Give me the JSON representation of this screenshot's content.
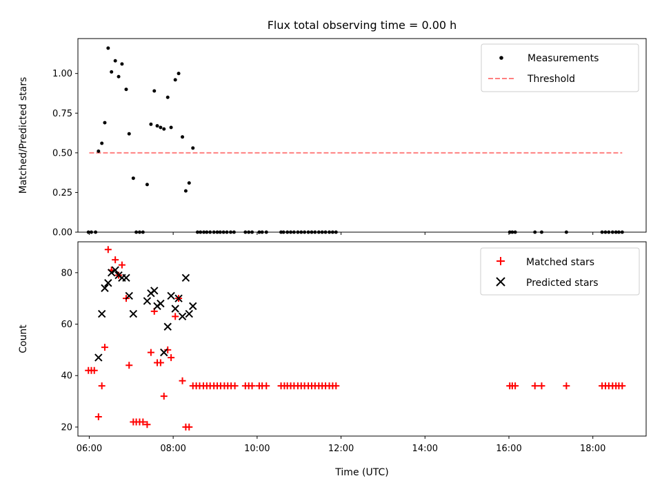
{
  "title": "Flux total observing time = 0.00 h",
  "colors": {
    "measurements": "#000000",
    "threshold": "#ff7f7f",
    "matched": "#ff0000",
    "predicted": "#000000"
  },
  "chart_data": [
    {
      "type": "scatter",
      "ylabel": "Matched/Predicted stars",
      "ylim": [
        0,
        1.22
      ],
      "yticks": [
        "0.00",
        "0.25",
        "0.50",
        "0.75",
        "1.00"
      ],
      "xlim": [
        5.73,
        19.27
      ],
      "legend": {
        "position": "top-right",
        "entries": [
          "Measurements",
          "Threshold"
        ]
      },
      "threshold": {
        "name": "Threshold",
        "x": [
          6.0,
          18.7
        ],
        "y": 0.5
      },
      "series": [
        {
          "name": "Measurements",
          "x": [
            5.98,
            6.05,
            6.15,
            6.22,
            6.3,
            6.37,
            6.45,
            6.53,
            6.62,
            6.7,
            6.78,
            6.88,
            6.95,
            7.05,
            7.12,
            7.2,
            7.28,
            7.38,
            7.47,
            7.55,
            7.62,
            7.7,
            7.78,
            7.87,
            7.95,
            8.05,
            8.13,
            8.22,
            8.3,
            8.38,
            8.47,
            8.58,
            8.65,
            8.73,
            8.8,
            8.88,
            8.97,
            9.05,
            9.12,
            9.2,
            9.28,
            9.37,
            9.45,
            9.72,
            9.8,
            9.88,
            10.05,
            10.12,
            10.22,
            10.57,
            10.63,
            10.72,
            10.8,
            10.88,
            10.97,
            11.05,
            11.13,
            11.22,
            11.3,
            11.38,
            11.47,
            11.55,
            11.63,
            11.72,
            11.8,
            11.88,
            16.02,
            16.08,
            16.15,
            16.62,
            16.78,
            17.37,
            18.22,
            18.3,
            18.38,
            18.47,
            18.55,
            18.62,
            18.7
          ],
          "y": [
            0.0,
            0.0,
            0.0,
            0.51,
            0.56,
            0.69,
            1.16,
            1.01,
            1.08,
            0.98,
            1.06,
            0.9,
            0.62,
            0.34,
            0.0,
            0.0,
            0.0,
            0.3,
            0.68,
            0.89,
            0.67,
            0.66,
            0.65,
            0.85,
            0.66,
            0.96,
            1.0,
            0.6,
            0.26,
            0.31,
            0.53,
            0.0,
            0.0,
            0.0,
            0.0,
            0.0,
            0.0,
            0.0,
            0.0,
            0.0,
            0.0,
            0.0,
            0.0,
            0.0,
            0.0,
            0.0,
            0.0,
            0.0,
            0.0,
            0.0,
            0.0,
            0.0,
            0.0,
            0.0,
            0.0,
            0.0,
            0.0,
            0.0,
            0.0,
            0.0,
            0.0,
            0.0,
            0.0,
            0.0,
            0.0,
            0.0,
            0.0,
            0.0,
            0.0,
            0.0,
            0.0,
            0.0,
            0.0,
            0.0,
            0.0,
            0.0,
            0.0,
            0.0,
            0.0
          ]
        }
      ]
    },
    {
      "type": "scatter",
      "xlabel": "Time (UTC)",
      "ylabel": "Count",
      "ylim": [
        16.5,
        92
      ],
      "yticks": [
        "20",
        "40",
        "60",
        "80"
      ],
      "xlim": [
        5.73,
        19.27
      ],
      "xticks": [
        "06:00",
        "08:00",
        "10:00",
        "12:00",
        "14:00",
        "16:00",
        "18:00"
      ],
      "legend": {
        "position": "top-right",
        "entries": [
          "Matched stars",
          "Predicted stars"
        ]
      },
      "series": [
        {
          "name": "Matched stars",
          "x": [
            5.98,
            6.05,
            6.12,
            6.22,
            6.3,
            6.37,
            6.45,
            6.53,
            6.62,
            6.7,
            6.78,
            6.88,
            6.95,
            7.05,
            7.12,
            7.2,
            7.28,
            7.38,
            7.47,
            7.55,
            7.62,
            7.7,
            7.78,
            7.87,
            7.95,
            8.05,
            8.13,
            8.22,
            8.3,
            8.38,
            8.47,
            8.55,
            8.63,
            8.72,
            8.8,
            8.88,
            8.97,
            9.05,
            9.13,
            9.22,
            9.3,
            9.38,
            9.47,
            9.72,
            9.8,
            9.88,
            10.05,
            10.12,
            10.22,
            10.57,
            10.65,
            10.72,
            10.8,
            10.88,
            10.97,
            11.05,
            11.13,
            11.22,
            11.3,
            11.38,
            11.47,
            11.55,
            11.63,
            11.72,
            11.8,
            11.88,
            16.02,
            16.08,
            16.15,
            16.62,
            16.78,
            17.37,
            18.22,
            18.3,
            18.38,
            18.47,
            18.55,
            18.62,
            18.7
          ],
          "y": [
            42,
            42,
            42,
            24,
            36,
            51,
            89,
            81,
            85,
            79,
            83,
            70,
            44,
            22,
            22,
            22,
            22,
            21,
            49,
            65,
            45,
            45,
            32,
            50,
            47,
            63,
            70,
            38,
            20,
            20,
            36,
            36,
            36,
            36,
            36,
            36,
            36,
            36,
            36,
            36,
            36,
            36,
            36,
            36,
            36,
            36,
            36,
            36,
            36,
            36,
            36,
            36,
            36,
            36,
            36,
            36,
            36,
            36,
            36,
            36,
            36,
            36,
            36,
            36,
            36,
            36,
            36,
            36,
            36,
            36,
            36,
            36,
            36,
            36,
            36,
            36,
            36,
            36,
            36
          ]
        },
        {
          "name": "Predicted stars",
          "x": [
            6.22,
            6.3,
            6.37,
            6.45,
            6.53,
            6.62,
            6.7,
            6.78,
            6.88,
            6.95,
            7.05,
            7.38,
            7.47,
            7.55,
            7.62,
            7.7,
            7.78,
            7.87,
            7.95,
            8.05,
            8.13,
            8.22,
            8.3,
            8.38,
            8.47
          ],
          "y": [
            47,
            64,
            74,
            76,
            80,
            81,
            79,
            78,
            78,
            71,
            64,
            69,
            72,
            73,
            67,
            68,
            49,
            59,
            71,
            66,
            70,
            63,
            78,
            64,
            67
          ]
        }
      ]
    }
  ]
}
